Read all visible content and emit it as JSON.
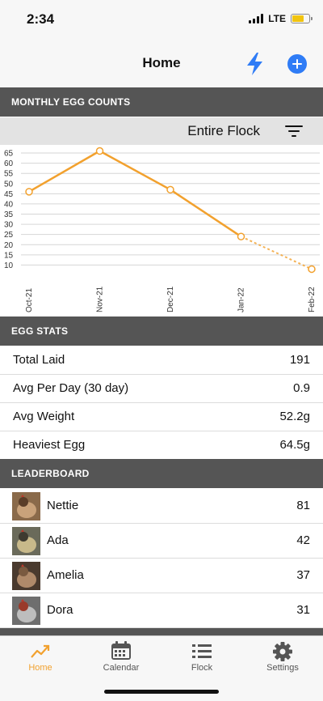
{
  "status_bar": {
    "time": "2:34",
    "network": "LTE",
    "battery_color": "#f1c40f"
  },
  "nav": {
    "title": "Home",
    "bolt_icon": "bolt-icon",
    "add_icon": "plus-circle-icon",
    "accent": "#2f7cf6"
  },
  "chart_section": {
    "header": "MONTHLY EGG COUNTS",
    "filter_label": "Entire Flock",
    "filter_icon": "filter-lines-icon"
  },
  "chart_data": {
    "type": "line",
    "categories": [
      "Oct-21",
      "Nov-21",
      "Dec-21",
      "Jan-22",
      "Feb-22"
    ],
    "values": [
      46,
      66,
      47,
      24,
      8
    ],
    "projected_from_index": 3,
    "yticks": [
      10,
      15,
      20,
      25,
      30,
      35,
      40,
      45,
      50,
      55,
      60,
      65
    ],
    "ylim": [
      5,
      67
    ],
    "grid": true,
    "line_color": "#f2a12e"
  },
  "stats": {
    "header": "EGG STATS",
    "rows": [
      {
        "label": "Total Laid",
        "value": "191"
      },
      {
        "label": "Avg Per Day (30 day)",
        "value": "0.9"
      },
      {
        "label": "Avg Weight",
        "value": "52.2g"
      },
      {
        "label": "Heaviest Egg",
        "value": "64.5g"
      }
    ]
  },
  "leaderboard": {
    "header": "LEADERBOARD",
    "rows": [
      {
        "name": "Nettie",
        "count": "81"
      },
      {
        "name": "Ada",
        "count": "42"
      },
      {
        "name": "Amelia",
        "count": "37"
      },
      {
        "name": "Dora",
        "count": "31"
      }
    ]
  },
  "tabs": [
    {
      "label": "Home",
      "icon": "trend-chart-icon",
      "active": true
    },
    {
      "label": "Calendar",
      "icon": "calendar-icon",
      "active": false
    },
    {
      "label": "Flock",
      "icon": "list-icon",
      "active": false
    },
    {
      "label": "Settings",
      "icon": "gear-icon",
      "active": false
    }
  ]
}
